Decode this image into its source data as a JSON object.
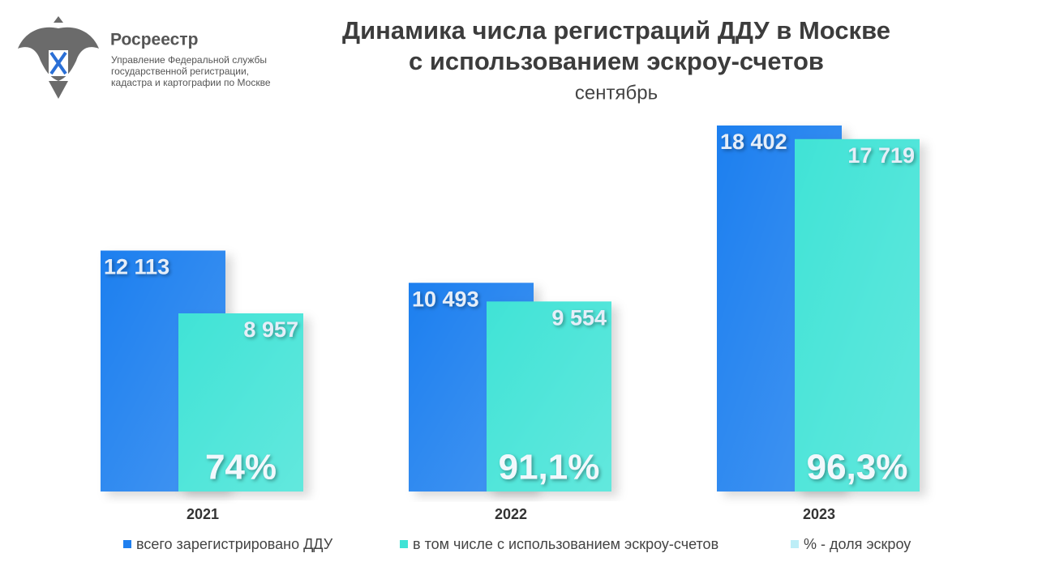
{
  "header": {
    "org": "Росреестр",
    "org_lines": [
      "Управление Федеральной службы",
      "государственной регистрации,",
      "кадастра и картографии по Москве"
    ]
  },
  "chart_data": {
    "type": "bar",
    "title": [
      "Динамика числа регистраций ДДУ в Москве",
      "с использованием эскроу-счетов"
    ],
    "subtitle": "сентябрь",
    "categories": [
      "2021",
      "2022",
      "2023"
    ],
    "series": [
      {
        "name": "всего зарегистрировано ДДУ",
        "color": "#1f7fef",
        "values": [
          12113,
          10493,
          18402
        ],
        "value_labels": [
          "12 113",
          "10 493",
          "18 402"
        ]
      },
      {
        "name": "в том числе с использованием эскроу-счетов",
        "color": "#3fe3d6",
        "values": [
          8957,
          9554,
          17719
        ],
        "value_labels": [
          "8 957",
          "9 554",
          "17 719"
        ]
      },
      {
        "name": "% - доля эскроу",
        "color": "#bdeef7",
        "values": [
          74,
          91.1,
          96.3
        ],
        "value_labels": [
          "74%",
          "91,1%",
          "96,3%"
        ]
      }
    ],
    "legend": "bottom"
  }
}
